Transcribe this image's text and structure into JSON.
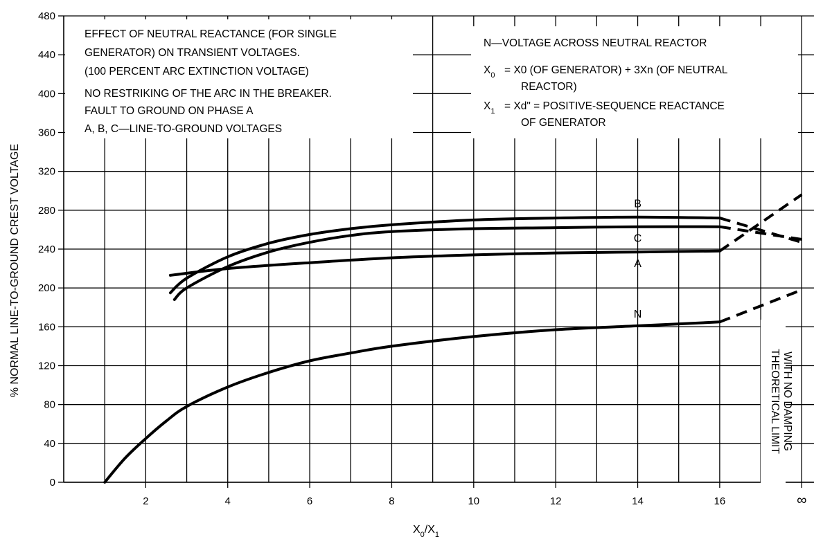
{
  "chart_data": {
    "type": "line",
    "xlabel": "X0/X1",
    "ylabel": "% NORMAL LINE-TO-GROUND CREST VOLTAGE",
    "xlim": [
      0,
      18.3
    ],
    "ylim": [
      0,
      480
    ],
    "x_ticks": [
      "2",
      "4",
      "6",
      "8",
      "10",
      "12",
      "14",
      "16",
      "∞"
    ],
    "y_ticks": [
      "0",
      "40",
      "80",
      "120",
      "160",
      "200",
      "240",
      "280",
      "320",
      "360",
      "400",
      "440",
      "480"
    ],
    "grid": true,
    "series": [
      {
        "name": "B",
        "x": [
          2.6,
          3,
          4,
          5,
          6,
          7,
          8,
          10,
          12,
          14,
          16
        ],
        "values": [
          195,
          210,
          232,
          246,
          255,
          261,
          265,
          270,
          272,
          273,
          272
        ],
        "extension": {
          "x": [
            16,
            18
          ],
          "values": [
            272,
            247
          ]
        }
      },
      {
        "name": "C",
        "x": [
          2.7,
          3,
          4,
          5,
          6,
          7,
          8,
          10,
          12,
          14,
          16
        ],
        "values": [
          188,
          200,
          222,
          237,
          247,
          254,
          258,
          261,
          262,
          263,
          263
        ],
        "extension": {
          "x": [
            16,
            18
          ],
          "values": [
            263,
            250
          ]
        }
      },
      {
        "name": "A",
        "x": [
          2.6,
          4,
          6,
          8,
          10,
          12,
          14,
          16
        ],
        "values": [
          213,
          220,
          226,
          231,
          234,
          236,
          237,
          238
        ],
        "extension": {
          "x": [
            16,
            18
          ],
          "values": [
            238,
            296
          ]
        }
      },
      {
        "name": "N",
        "x": [
          1,
          1.5,
          2,
          2.5,
          3,
          4,
          5,
          6,
          7,
          8,
          10,
          12,
          14,
          16
        ],
        "values": [
          0,
          25,
          45,
          63,
          78,
          98,
          113,
          125,
          133,
          140,
          150,
          157,
          161,
          165
        ],
        "extension": {
          "x": [
            16,
            18
          ],
          "values": [
            165,
            198
          ]
        }
      }
    ],
    "annotations": {
      "left_box": [
        "EFFECT OF NEUTRAL REACTANCE (FOR SINGLE",
        "GENERATOR) ON TRANSIENT VOLTAGES.",
        "(100 PERCENT ARC EXTINCTION VOLTAGE)",
        "NO RESTRIKING OF THE ARC IN THE BREAKER.",
        "FAULT TO GROUND ON PHASE A",
        "A, B, C—LINE-TO-GROUND VOLTAGES"
      ],
      "right_box": {
        "line1": "N—VOLTAGE ACROSS NEUTRAL REACTOR",
        "line2": "= X0 (OF GENERATOR) + 3Xn (OF NEUTRAL",
        "line3": "REACTOR)",
        "line4": "= Xd\" = POSITIVE-SEQUENCE REACTANCE",
        "line5": "OF GENERATOR"
      },
      "limit_note": [
        "THEORETICAL LIMIT",
        "WITH NO DAMPING"
      ]
    }
  }
}
